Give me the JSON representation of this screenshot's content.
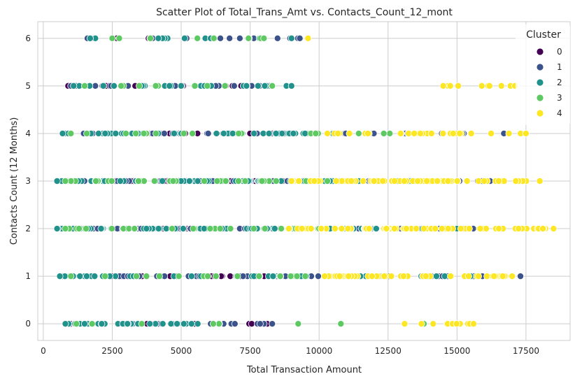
{
  "chart_data": {
    "type": "scatter",
    "title": "Scatter Plot of Total_Trans_Amt vs. Contacts_Count_12_mont",
    "xlabel": "Total Transaction Amount",
    "ylabel": "Contacts Count (12 Months)",
    "xlim": [
      -200,
      19100
    ],
    "ylim": [
      -0.35,
      6.35
    ],
    "xticks": [
      0,
      2500,
      5000,
      7500,
      10000,
      12500,
      15000,
      17500
    ],
    "xtick_labels": [
      "0",
      "2500",
      "5000",
      "7500",
      "10000",
      "12500",
      "15000",
      "17500"
    ],
    "yticks": [
      0,
      1,
      2,
      3,
      4,
      5,
      6
    ],
    "ytick_labels": [
      "0",
      "1",
      "2",
      "3",
      "4",
      "5",
      "6"
    ],
    "grid": true,
    "legend": {
      "title": "Cluster",
      "placement": "top-right"
    },
    "series": [
      {
        "name": "0",
        "color": "#440154",
        "ranges": [
          {
            "y": 6,
            "xmin": 1600,
            "xmax": 5100,
            "n": 3
          },
          {
            "y": 5,
            "xmin": 900,
            "xmax": 8100,
            "n": 16
          },
          {
            "y": 4,
            "xmin": 700,
            "xmax": 9000,
            "n": 30
          },
          {
            "y": 3,
            "xmin": 700,
            "xmax": 9500,
            "n": 60
          },
          {
            "y": 2,
            "xmin": 600,
            "xmax": 9300,
            "n": 60
          },
          {
            "y": 1,
            "xmin": 700,
            "xmax": 8600,
            "n": 35
          },
          {
            "y": 0,
            "xmin": 1000,
            "xmax": 8300,
            "n": 18
          }
        ]
      },
      {
        "name": "1",
        "color": "#3b528b",
        "ranges": [
          {
            "y": 6,
            "xmin": 1600,
            "xmax": 9300,
            "n": 12
          },
          {
            "y": 5,
            "xmin": 1000,
            "xmax": 8200,
            "n": 14
          },
          {
            "y": 4,
            "xmin": 800,
            "xmax": 16700,
            "n": 35
          },
          {
            "y": 3,
            "xmin": 600,
            "xmax": 16200,
            "n": 70
          },
          {
            "y": 2,
            "xmin": 500,
            "xmax": 16600,
            "n": 70
          },
          {
            "y": 1,
            "xmin": 700,
            "xmax": 17300,
            "n": 45
          },
          {
            "y": 0,
            "xmin": 900,
            "xmax": 8300,
            "n": 20
          }
        ]
      },
      {
        "name": "2",
        "color": "#21918c",
        "ranges": [
          {
            "y": 6,
            "xmin": 1700,
            "xmax": 9000,
            "n": 16
          },
          {
            "y": 5,
            "xmin": 1100,
            "xmax": 9000,
            "n": 25
          },
          {
            "y": 4,
            "xmin": 700,
            "xmax": 10500,
            "n": 45
          },
          {
            "y": 3,
            "xmin": 500,
            "xmax": 14500,
            "n": 80
          },
          {
            "y": 2,
            "xmin": 500,
            "xmax": 15000,
            "n": 80
          },
          {
            "y": 1,
            "xmin": 600,
            "xmax": 15500,
            "n": 55
          },
          {
            "y": 0,
            "xmin": 800,
            "xmax": 5600,
            "n": 30
          }
        ]
      },
      {
        "name": "3",
        "color": "#5ec962",
        "ranges": [
          {
            "y": 6,
            "xmin": 2500,
            "xmax": 8000,
            "n": 6
          },
          {
            "y": 5,
            "xmin": 1500,
            "xmax": 8300,
            "n": 8
          },
          {
            "y": 4,
            "xmin": 1000,
            "xmax": 14500,
            "n": 20
          },
          {
            "y": 3,
            "xmin": 800,
            "xmax": 10300,
            "n": 30
          },
          {
            "y": 2,
            "xmin": 800,
            "xmax": 10000,
            "n": 30
          },
          {
            "y": 1,
            "xmin": 1000,
            "xmax": 9500,
            "n": 15
          },
          {
            "y": 0,
            "xmin": 1200,
            "xmax": 13800,
            "n": 6
          }
        ]
      },
      {
        "name": "4",
        "color": "#fde725",
        "ranges": [
          {
            "y": 6,
            "xmin": 9600,
            "xmax": 9600,
            "n": 1
          },
          {
            "y": 5,
            "xmin": 14500,
            "xmax": 17100,
            "n": 10
          },
          {
            "y": 4,
            "xmin": 10300,
            "xmax": 17500,
            "n": 30
          },
          {
            "y": 3,
            "xmin": 9000,
            "xmax": 18000,
            "n": 70
          },
          {
            "y": 2,
            "xmin": 8900,
            "xmax": 18500,
            "n": 70
          },
          {
            "y": 1,
            "xmin": 10200,
            "xmax": 17000,
            "n": 45
          },
          {
            "y": 0,
            "xmin": 13100,
            "xmax": 15600,
            "n": 10
          }
        ]
      }
    ]
  }
}
